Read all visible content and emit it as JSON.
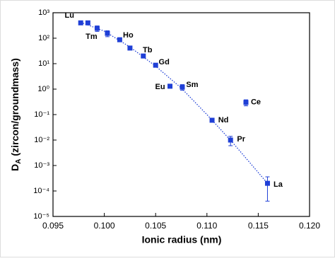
{
  "chart_data": {
    "type": "scatter",
    "xlabel": "Ionic radius (nm)",
    "ylabel": {
      "main": "D",
      "sub": "A",
      "rest": " (zircon/groundmass)"
    },
    "log_y": true,
    "xlim": [
      0.095,
      0.12
    ],
    "xticks": [
      0.095,
      {
        "value": 0.1,
        "label": "0.100"
      },
      0.105,
      {
        "value": 0.11,
        "label": "0.110"
      },
      0.115,
      {
        "value": 0.12,
        "label": "0.120"
      }
    ],
    "ylim": [
      1e-05,
      1000
    ],
    "yticks": [
      {
        "value": 1e-05,
        "label": "10⁻⁵"
      },
      {
        "value": 0.0001,
        "label": "10⁻⁴"
      },
      {
        "value": 0.001,
        "label": "10⁻³"
      },
      {
        "value": 0.01,
        "label": "10⁻²"
      },
      {
        "value": 0.1,
        "label": "10⁻¹"
      },
      {
        "value": 1,
        "label": "10⁰"
      },
      {
        "value": 10,
        "label": "10¹"
      },
      {
        "value": 100,
        "label": "10²"
      },
      {
        "value": 1000,
        "label": "10³"
      }
    ],
    "series": [
      {
        "color": "#1f3fd6",
        "x": [
          0.0977,
          0.0984,
          0.0993,
          0.1003,
          0.1015,
          0.1025,
          0.1038,
          0.105,
          0.1064,
          0.1076,
          0.1105,
          0.1123,
          0.1138,
          0.1159
        ],
        "values": [
          400,
          400,
          245,
          155,
          87,
          41,
          20,
          8.7,
          1.3,
          1.2,
          0.06,
          0.01,
          0.3,
          0.0002
        ],
        "errors": [
          null,
          null,
          60,
          40,
          null,
          null,
          null,
          null,
          null,
          0.3,
          null,
          0.004,
          0.08,
          0.00016
        ],
        "labels": [
          "Lu",
          null,
          "Tm",
          null,
          "Ho",
          null,
          "Tb",
          "Gd",
          "Eu",
          "Sm",
          "Nd",
          "Pr",
          "Ce",
          "La"
        ]
      },
      {
        "color": "#1f3fd6",
        "style": "dotted",
        "x": [
          0.0977,
          0.1,
          0.1025,
          0.105,
          0.1075,
          0.11,
          0.1125,
          0.1159
        ],
        "values": [
          420,
          190,
          45,
          8,
          1.1,
          0.1,
          0.008,
          0.0002
        ]
      }
    ]
  }
}
